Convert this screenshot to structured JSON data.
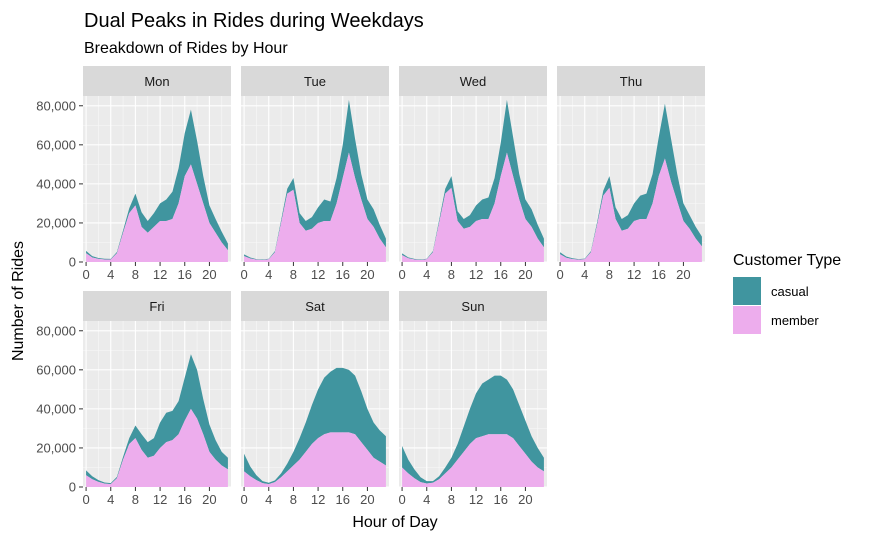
{
  "chart_data": {
    "type": "area",
    "stacked": true,
    "title": "Dual Peaks in Rides during Weekdays",
    "subtitle": "Breakdown of Rides by Hour",
    "xlabel": "Hour of Day",
    "ylabel": "Number of Rides",
    "x": [
      0,
      1,
      2,
      3,
      4,
      5,
      6,
      7,
      8,
      9,
      10,
      11,
      12,
      13,
      14,
      15,
      16,
      17,
      18,
      19,
      20,
      21,
      22,
      23
    ],
    "x_ticks": [
      0,
      4,
      8,
      12,
      16,
      20
    ],
    "x_tick_labels": [
      "0",
      "4",
      "8",
      "12",
      "16",
      "20"
    ],
    "ylim": [
      0,
      85000
    ],
    "y_ticks": [
      0,
      20000,
      40000,
      60000,
      80000
    ],
    "y_tick_labels": [
      "0",
      "20,000",
      "40,000",
      "60,000",
      "80,000"
    ],
    "grid": true,
    "legend": {
      "title": "Customer Type",
      "position": "right"
    },
    "series_styles": [
      {
        "name": "casual",
        "color": "#40959F"
      },
      {
        "name": "member",
        "color": "#EDADED"
      }
    ],
    "panels": [
      {
        "label": "Mon",
        "casual": [
          1200,
          700,
          450,
          350,
          300,
          600,
          1200,
          2500,
          6000,
          7500,
          6000,
          7000,
          9000,
          11000,
          14000,
          18000,
          22000,
          28000,
          22000,
          14000,
          9000,
          7000,
          5500,
          3500
        ],
        "member": [
          4500,
          2300,
          1600,
          1300,
          1300,
          4500,
          15000,
          25000,
          29000,
          18000,
          15000,
          18000,
          21000,
          21000,
          22000,
          30000,
          44000,
          50000,
          40000,
          30000,
          20000,
          15000,
          10000,
          6000
        ]
      },
      {
        "label": "Tue",
        "casual": [
          900,
          500,
          300,
          250,
          250,
          600,
          1300,
          2500,
          6000,
          5000,
          5000,
          6000,
          8000,
          11000,
          10000,
          13000,
          17000,
          27000,
          20000,
          13000,
          10000,
          9000,
          7000,
          4500
        ],
        "member": [
          3000,
          1800,
          1200,
          1000,
          1400,
          5000,
          20000,
          35000,
          37000,
          20000,
          16000,
          17000,
          20000,
          21000,
          21000,
          30000,
          43000,
          56000,
          43000,
          32000,
          22000,
          18000,
          12000,
          7500
        ]
      },
      {
        "label": "Wed",
        "casual": [
          900,
          500,
          300,
          250,
          250,
          600,
          1300,
          2500,
          6000,
          5000,
          5000,
          6000,
          8000,
          10000,
          11000,
          13000,
          17000,
          27000,
          20000,
          13000,
          10000,
          9000,
          7000,
          4500
        ],
        "member": [
          3500,
          1900,
          1300,
          1000,
          1400,
          5000,
          20000,
          35000,
          38000,
          21000,
          17000,
          18000,
          21000,
          22000,
          22000,
          30000,
          44000,
          56000,
          44000,
          32000,
          22000,
          18000,
          12000,
          7500
        ]
      },
      {
        "label": "Thu",
        "casual": [
          1000,
          600,
          400,
          300,
          300,
          600,
          1300,
          2500,
          6000,
          6000,
          6000,
          7000,
          9000,
          12000,
          13000,
          15000,
          20000,
          28000,
          22000,
          14000,
          9000,
          7000,
          6000,
          5000
        ],
        "member": [
          4000,
          2200,
          1500,
          1200,
          1400,
          5000,
          19000,
          34000,
          38000,
          22000,
          16000,
          17000,
          21000,
          22000,
          22000,
          30000,
          44000,
          53000,
          41000,
          31000,
          21000,
          17000,
          12000,
          8000
        ]
      },
      {
        "label": "Fri",
        "casual": [
          2500,
          1500,
          900,
          600,
          500,
          700,
          1500,
          3000,
          6500,
          8000,
          8000,
          9000,
          13000,
          15000,
          15000,
          17000,
          22000,
          28000,
          25000,
          18000,
          14000,
          10000,
          7000,
          6000
        ],
        "member": [
          6000,
          4000,
          2600,
          1700,
          1500,
          4500,
          14000,
          22000,
          25000,
          19000,
          15000,
          16000,
          20000,
          23000,
          24000,
          27000,
          34000,
          40000,
          35000,
          27000,
          18000,
          14000,
          11000,
          9000
        ]
      },
      {
        "label": "Sat",
        "casual": [
          9000,
          5000,
          2500,
          1000,
          700,
          900,
          2000,
          4000,
          7000,
          11000,
          15000,
          20000,
          25000,
          29000,
          31000,
          33000,
          33000,
          32000,
          30000,
          26000,
          21000,
          18000,
          16000,
          15000
        ],
        "member": [
          8000,
          5500,
          3500,
          2000,
          1500,
          2500,
          5000,
          8000,
          11000,
          14000,
          18000,
          22000,
          25000,
          27000,
          28000,
          28000,
          28000,
          28000,
          27000,
          23000,
          19000,
          15000,
          13000,
          11000
        ]
      },
      {
        "label": "Sun",
        "casual": [
          11000,
          7000,
          4500,
          2500,
          1200,
          800,
          1500,
          3000,
          5000,
          8000,
          13000,
          18000,
          23000,
          27000,
          28000,
          30000,
          30000,
          28000,
          25000,
          21000,
          17000,
          13000,
          10000,
          7000
        ],
        "member": [
          10000,
          7000,
          4500,
          2500,
          1800,
          2200,
          4000,
          7000,
          10000,
          14000,
          18000,
          22000,
          25000,
          26000,
          27000,
          27000,
          27000,
          27000,
          25000,
          21000,
          17000,
          13000,
          10000,
          8000
        ]
      }
    ]
  }
}
